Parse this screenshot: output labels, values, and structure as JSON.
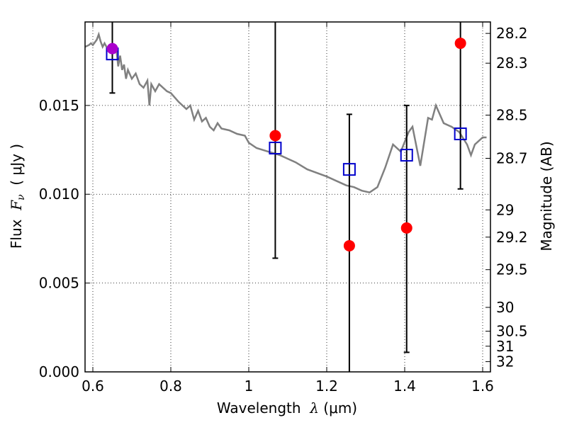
{
  "chart_data": {
    "type": "scatter",
    "title": "",
    "xlabel_parts": {
      "prefix": "Wavelength  ",
      "sym": "λ",
      "unit": " (μm)"
    },
    "ylabel_parts": {
      "prefix": "Flux  ",
      "sym": "F",
      "sub": "ν",
      "unit": "  ( μJy )"
    },
    "y2label": "Magnitude (AB)",
    "xlim": [
      0.58,
      1.62
    ],
    "ylim": [
      0.0,
      0.0197
    ],
    "grid": true,
    "xticks": [
      {
        "v": 0.6,
        "label": "0.6"
      },
      {
        "v": 0.8,
        "label": "0.8"
      },
      {
        "v": 1.0,
        "label": "1"
      },
      {
        "v": 1.2,
        "label": "1.2"
      },
      {
        "v": 1.4,
        "label": "1.4"
      },
      {
        "v": 1.6,
        "label": "1.6"
      }
    ],
    "yticks": [
      {
        "v": 0.0,
        "label": "0.000"
      },
      {
        "v": 0.005,
        "label": "0.005"
      },
      {
        "v": 0.01,
        "label": "0.010"
      },
      {
        "v": 0.015,
        "label": "0.015"
      }
    ],
    "y2ticks": [
      {
        "v": 28.2,
        "label": "28.2"
      },
      {
        "v": 28.3,
        "label": "28.3"
      },
      {
        "v": 28.5,
        "label": "28.5"
      },
      {
        "v": 28.7,
        "label": "28.7"
      },
      {
        "v": 29.0,
        "label": "29"
      },
      {
        "v": 29.2,
        "label": "29.2"
      },
      {
        "v": 29.5,
        "label": "29.5"
      },
      {
        "v": 30.0,
        "label": "30"
      },
      {
        "v": 30.5,
        "label": "30.5"
      },
      {
        "v": 31.0,
        "label": "31"
      },
      {
        "v": 32.0,
        "label": "32"
      }
    ],
    "series": [
      {
        "kind": "line",
        "color": "#808080",
        "x": [
          0.58,
          0.59,
          0.595,
          0.6,
          0.61,
          0.615,
          0.62,
          0.625,
          0.63,
          0.64,
          0.65,
          0.66,
          0.665,
          0.67,
          0.675,
          0.68,
          0.685,
          0.69,
          0.7,
          0.71,
          0.72,
          0.73,
          0.74,
          0.745,
          0.75,
          0.76,
          0.77,
          0.78,
          0.79,
          0.8,
          0.82,
          0.84,
          0.85,
          0.86,
          0.87,
          0.88,
          0.89,
          0.9,
          0.91,
          0.92,
          0.93,
          0.95,
          0.97,
          0.99,
          1.0,
          1.02,
          1.05,
          1.08,
          1.1,
          1.12,
          1.15,
          1.2,
          1.23,
          1.25,
          1.27,
          1.29,
          1.31,
          1.33,
          1.35,
          1.37,
          1.39,
          1.41,
          1.42,
          1.44,
          1.46,
          1.47,
          1.48,
          1.5,
          1.52,
          1.54,
          1.56,
          1.57,
          1.58,
          1.6,
          1.61
        ],
        "y": [
          0.0183,
          0.0184,
          0.0185,
          0.0184,
          0.0187,
          0.019,
          0.0186,
          0.0183,
          0.0185,
          0.0181,
          0.0183,
          0.0182,
          0.0172,
          0.0178,
          0.017,
          0.0173,
          0.0165,
          0.017,
          0.0165,
          0.0168,
          0.0162,
          0.016,
          0.0164,
          0.015,
          0.0162,
          0.0158,
          0.0162,
          0.016,
          0.0158,
          0.0157,
          0.0152,
          0.0148,
          0.015,
          0.0142,
          0.0147,
          0.0141,
          0.0143,
          0.0138,
          0.0136,
          0.014,
          0.0137,
          0.0136,
          0.0134,
          0.0133,
          0.0129,
          0.0126,
          0.0124,
          0.0122,
          0.012,
          0.0118,
          0.0114,
          0.011,
          0.0107,
          0.0105,
          0.0104,
          0.0102,
          0.0101,
          0.0104,
          0.0115,
          0.0128,
          0.0124,
          0.0135,
          0.0138,
          0.0116,
          0.0143,
          0.0142,
          0.015,
          0.014,
          0.0138,
          0.0135,
          0.0128,
          0.0122,
          0.0128,
          0.0132,
          0.0132
        ]
      },
      {
        "kind": "errorbar",
        "color": "#000000",
        "points": [
          {
            "x": 0.65,
            "low": 0.0157,
            "high": 0.0197,
            "cap_low": true,
            "cap_high": false
          },
          {
            "x": 1.068,
            "low": 0.0064,
            "high": 0.0197,
            "cap_low": true,
            "cap_high": false
          },
          {
            "x": 1.258,
            "low": 0.0,
            "high": 0.0145,
            "cap_low": false,
            "cap_high": true
          },
          {
            "x": 1.405,
            "low": 0.0011,
            "high": 0.015,
            "cap_low": true,
            "cap_high": true
          },
          {
            "x": 1.543,
            "low": 0.0103,
            "high": 0.0197,
            "cap_low": true,
            "cap_high": false
          }
        ]
      },
      {
        "kind": "squares",
        "color": "#0000cc",
        "points": [
          {
            "x": 0.65,
            "y": 0.0179
          },
          {
            "x": 1.068,
            "y": 0.0126
          },
          {
            "x": 1.258,
            "y": 0.0114
          },
          {
            "x": 1.405,
            "y": 0.0122
          },
          {
            "x": 1.543,
            "y": 0.0134
          }
        ]
      },
      {
        "kind": "circles",
        "color": "#ff0000",
        "points": [
          {
            "x": 0.65,
            "y": 0.0182,
            "color": "#aa00cc"
          },
          {
            "x": 1.068,
            "y": 0.0133
          },
          {
            "x": 1.258,
            "y": 0.0071
          },
          {
            "x": 1.405,
            "y": 0.0081
          },
          {
            "x": 1.543,
            "y": 0.0185
          }
        ]
      }
    ]
  }
}
